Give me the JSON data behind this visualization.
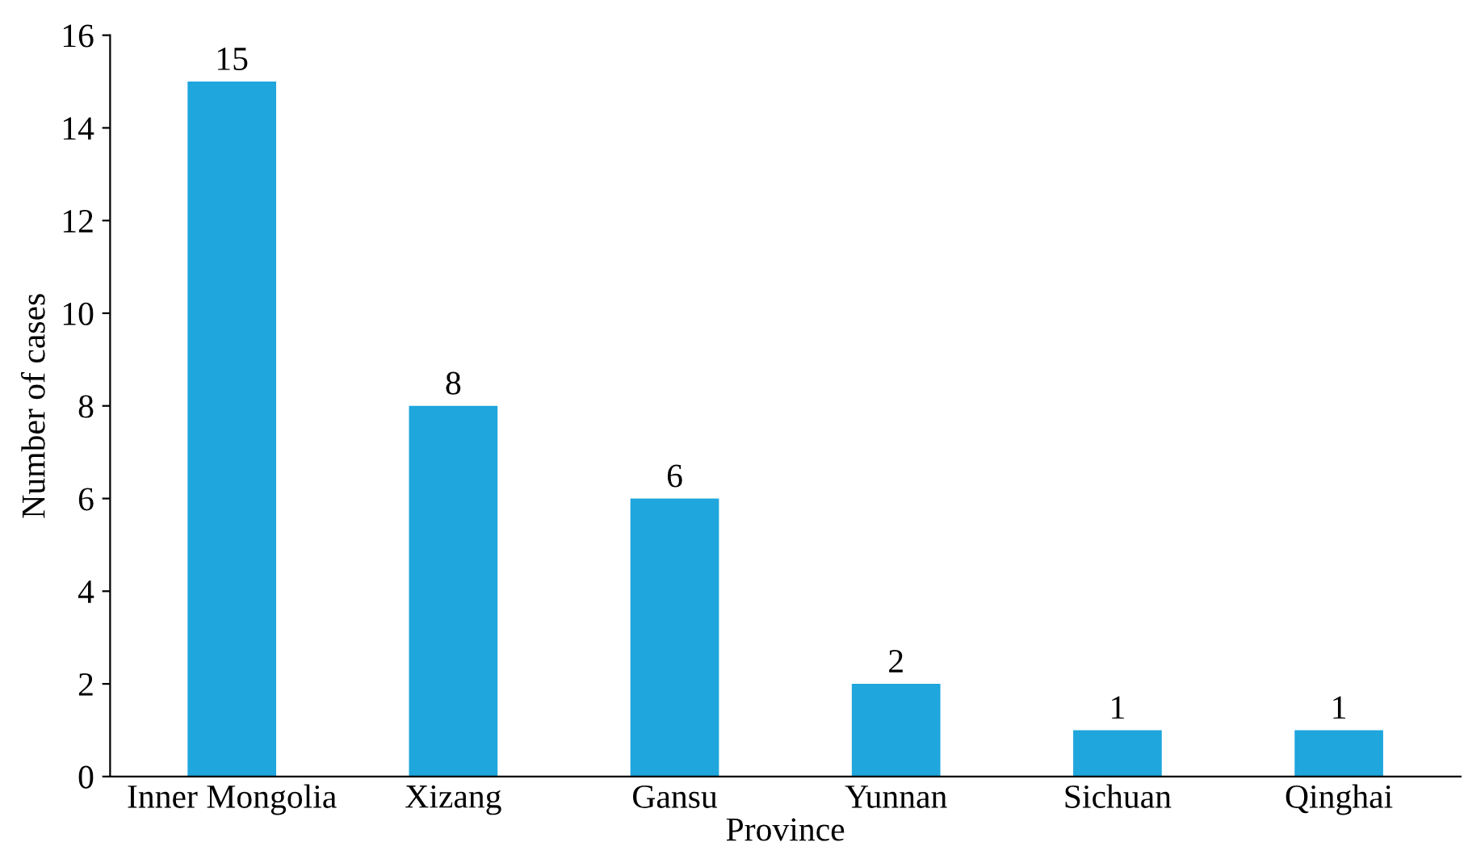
{
  "chart_data": {
    "type": "bar",
    "xlabel": "Province",
    "ylabel": "Number of cases",
    "categories": [
      "Inner Mongolia",
      "Xizang",
      "Gansu",
      "Yunnan",
      "Sichuan",
      "Qinghai"
    ],
    "values": [
      15,
      8,
      6,
      2,
      1,
      1
    ],
    "color": "#1ea6dd",
    "ylim": [
      0,
      16
    ],
    "yticks": [
      0,
      2,
      4,
      6,
      8,
      10,
      12,
      14,
      16
    ],
    "grid": false,
    "data_labels": true
  }
}
